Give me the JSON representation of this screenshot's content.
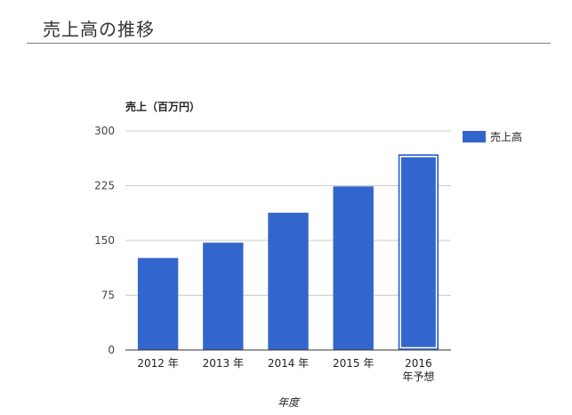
{
  "header": {
    "title": "売上高の推移"
  },
  "chart_data": {
    "type": "bar",
    "title": "",
    "ylabel": "売上（百万円）",
    "xlabel": "年度",
    "categories": [
      "2012 年",
      "2013 年",
      "2014 年",
      "2015 年",
      "2016\n年予想"
    ],
    "series": [
      {
        "name": "売上高",
        "values": [
          126,
          147,
          188,
          224,
          268
        ],
        "color": "#3366cc"
      }
    ],
    "forecast_index": 4,
    "ylim": [
      0,
      300
    ],
    "yticks": [
      0,
      75,
      150,
      225,
      300
    ],
    "grid": true,
    "legend": "right"
  }
}
